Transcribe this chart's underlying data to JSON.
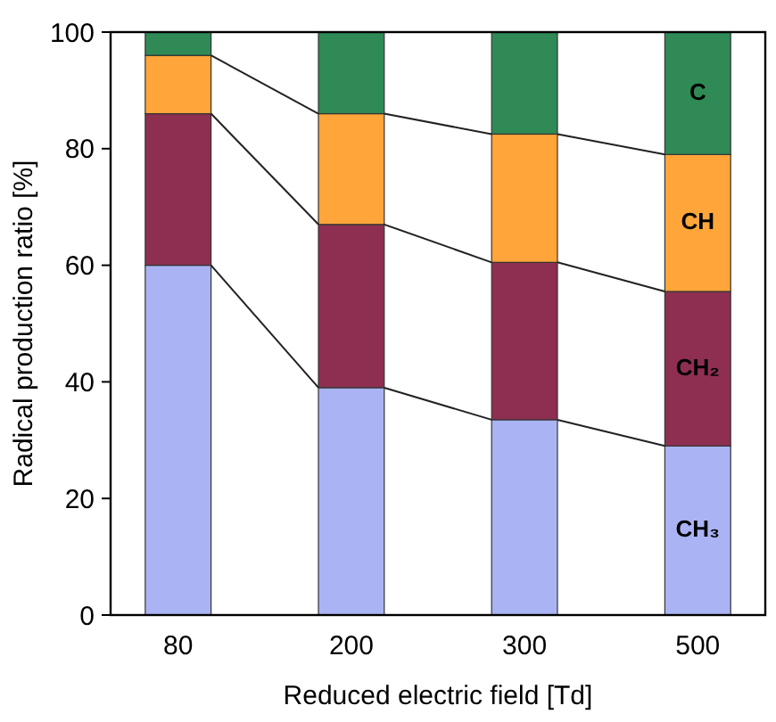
{
  "chart_data": {
    "type": "bar",
    "stacked": true,
    "xlabel": "Reduced electric field [Td]",
    "ylabel": "Radical production ratio [%]",
    "categories": [
      "80",
      "200",
      "300",
      "500"
    ],
    "series": [
      {
        "name": "CH₃",
        "color": "#aab4f4",
        "values": [
          60,
          39,
          33.5,
          29
        ]
      },
      {
        "name": "CH₂",
        "color": "#8e2f52",
        "values": [
          26,
          28,
          27,
          26.5
        ]
      },
      {
        "name": "CH",
        "color": "#ffa53a",
        "values": [
          10,
          19,
          22,
          23.5
        ]
      },
      {
        "name": "C",
        "color": "#2f8a55",
        "values": [
          4,
          14,
          17.5,
          21
        ]
      }
    ],
    "ylim": [
      0,
      100
    ],
    "yticks": [
      0,
      20,
      40,
      60,
      80,
      100
    ],
    "grid": false,
    "legend": false
  }
}
